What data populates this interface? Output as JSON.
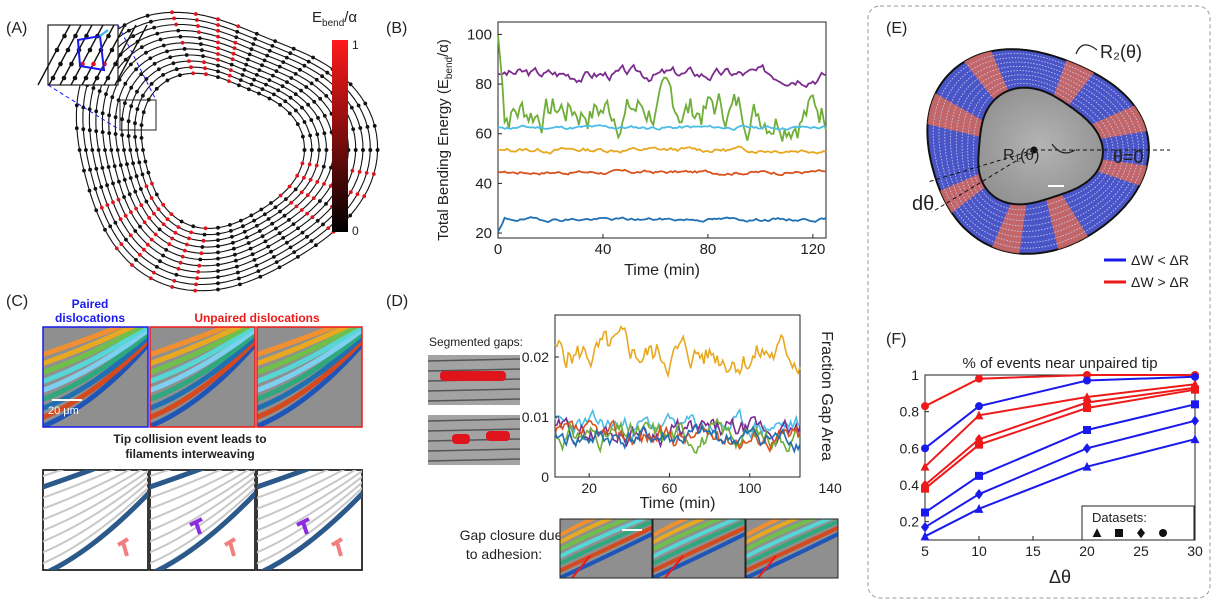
{
  "panels": {
    "A": {
      "label": "(A)",
      "colorbar_title": "E",
      "colorbar_title_sub": "bend",
      "colorbar_title_suffix": "/α",
      "colorbar_max": "1",
      "colorbar_min": "0"
    },
    "C": {
      "label": "(C)",
      "paired_title_1": "Paired",
      "paired_title_2": "dislocations",
      "unpaired_title": "Unpaired dislocations",
      "scale_bar": "20 μm",
      "caption_1": "Tip collision event leads to",
      "caption_2": "filaments interweaving"
    },
    "D": {
      "label": "(D)",
      "segmented_label": "Segmented gaps:",
      "gap_closure_1": "Gap closure due",
      "gap_closure_2": "to adhesion:"
    },
    "E": {
      "label": "(E)",
      "r2_label": "R₂(θ)",
      "r1_label": "R₁(θ)",
      "theta0_label": "θ=0",
      "dtheta_label": "dθ",
      "legend_blue": "ΔW < ΔR",
      "legend_red": "ΔW > ΔR"
    },
    "F": {
      "label": "(F)",
      "datasets_label": "Datasets:"
    },
    "B_label": "(B)"
  },
  "colors": {
    "blue_legend": "#1a1aee",
    "red_legend": "#ee1a1a"
  },
  "chart_data": [
    {
      "id": "B",
      "type": "line",
      "title": "",
      "xlabel": "Time (min)",
      "ylabel": "Total Bending Energy (E",
      "ylabel_sub": "bend",
      "ylabel_suffix": "/α)",
      "xlim": [
        0,
        125
      ],
      "ylim": [
        18,
        105
      ],
      "xticks": [
        0,
        40,
        80,
        120
      ],
      "yticks": [
        20,
        40,
        60,
        80,
        100
      ],
      "series": [
        {
          "name": "purple",
          "color": "#7b2d8e",
          "mean": 84,
          "amp": 2.2,
          "seed": 3
        },
        {
          "name": "green",
          "color": "#6fae38",
          "mean": 70,
          "amp": 7.5,
          "seed": 7
        },
        {
          "name": "light blue",
          "color": "#4bbde8",
          "mean": 62.5,
          "amp": 0.7,
          "seed": 11
        },
        {
          "name": "yellow",
          "color": "#e8a820",
          "mean": 53.5,
          "amp": 0.9,
          "seed": 13
        },
        {
          "name": "orange",
          "color": "#d9531e",
          "mean": 44.5,
          "amp": 0.7,
          "seed": 17
        },
        {
          "name": "blue",
          "color": "#1f6fb2",
          "mean": 25.5,
          "amp": 0.6,
          "seed": 19
        }
      ]
    },
    {
      "id": "D",
      "type": "line",
      "title": "",
      "xlabel": "Time (min)",
      "ylabel": "Fraction Gap Area",
      "xlim": [
        3,
        125
      ],
      "ylim": [
        0,
        0.027
      ],
      "xticks": [
        20,
        60,
        100,
        140
      ],
      "yticks": [
        "0",
        "0.01",
        "0.02"
      ],
      "ytick_values": [
        0,
        0.01,
        0.02
      ],
      "series": [
        {
          "name": "yellow",
          "color": "#e8a820",
          "mean": 0.0205,
          "amp": 0.0025,
          "seed": 5
        },
        {
          "name": "light blue",
          "color": "#4bbde8",
          "mean": 0.0085,
          "amp": 0.0015,
          "seed": 23
        },
        {
          "name": "purple",
          "color": "#7b2d8e",
          "mean": 0.0075,
          "amp": 0.0016,
          "seed": 29
        },
        {
          "name": "green",
          "color": "#6fae38",
          "mean": 0.007,
          "amp": 0.0017,
          "seed": 31
        },
        {
          "name": "orange",
          "color": "#d9531e",
          "mean": 0.0068,
          "amp": 0.0015,
          "seed": 37
        },
        {
          "name": "blue",
          "color": "#1f6fb2",
          "mean": 0.0065,
          "amp": 0.0015,
          "seed": 41
        }
      ]
    },
    {
      "id": "F",
      "type": "line",
      "title": "% of events near unpaired tip",
      "xlabel": "Δθ",
      "ylabel": "",
      "xlim": [
        5,
        30
      ],
      "ylim": [
        0.1,
        1.0
      ],
      "xticks": [
        5,
        10,
        15,
        20,
        25,
        30
      ],
      "yticks": [
        "0.2",
        "0.4",
        "0.6",
        "0.8",
        "1"
      ],
      "ytick_values": [
        0.2,
        0.4,
        0.6,
        0.8,
        1.0
      ],
      "x": [
        5,
        10,
        20,
        30
      ],
      "series": [
        {
          "name": "red circle",
          "color": "#ee1a1a",
          "marker": "circle",
          "values": [
            0.83,
            0.98,
            1.0,
            1.0
          ]
        },
        {
          "name": "red triangle",
          "color": "#ee1a1a",
          "marker": "triangle",
          "values": [
            0.5,
            0.78,
            0.88,
            0.95
          ]
        },
        {
          "name": "red diamond",
          "color": "#ee1a1a",
          "marker": "diamond",
          "values": [
            0.4,
            0.65,
            0.85,
            0.93
          ]
        },
        {
          "name": "red square",
          "color": "#ee1a1a",
          "marker": "square",
          "values": [
            0.38,
            0.62,
            0.82,
            0.92
          ]
        },
        {
          "name": "blue circle",
          "color": "#1a1aee",
          "marker": "circle",
          "values": [
            0.6,
            0.83,
            0.97,
            0.99
          ]
        },
        {
          "name": "blue square",
          "color": "#1a1aee",
          "marker": "square",
          "values": [
            0.25,
            0.45,
            0.7,
            0.84
          ]
        },
        {
          "name": "blue diamond",
          "color": "#1a1aee",
          "marker": "diamond",
          "values": [
            0.17,
            0.35,
            0.6,
            0.75
          ]
        },
        {
          "name": "blue triangle",
          "color": "#1a1aee",
          "marker": "triangle",
          "values": [
            0.12,
            0.27,
            0.5,
            0.65
          ]
        }
      ]
    }
  ]
}
